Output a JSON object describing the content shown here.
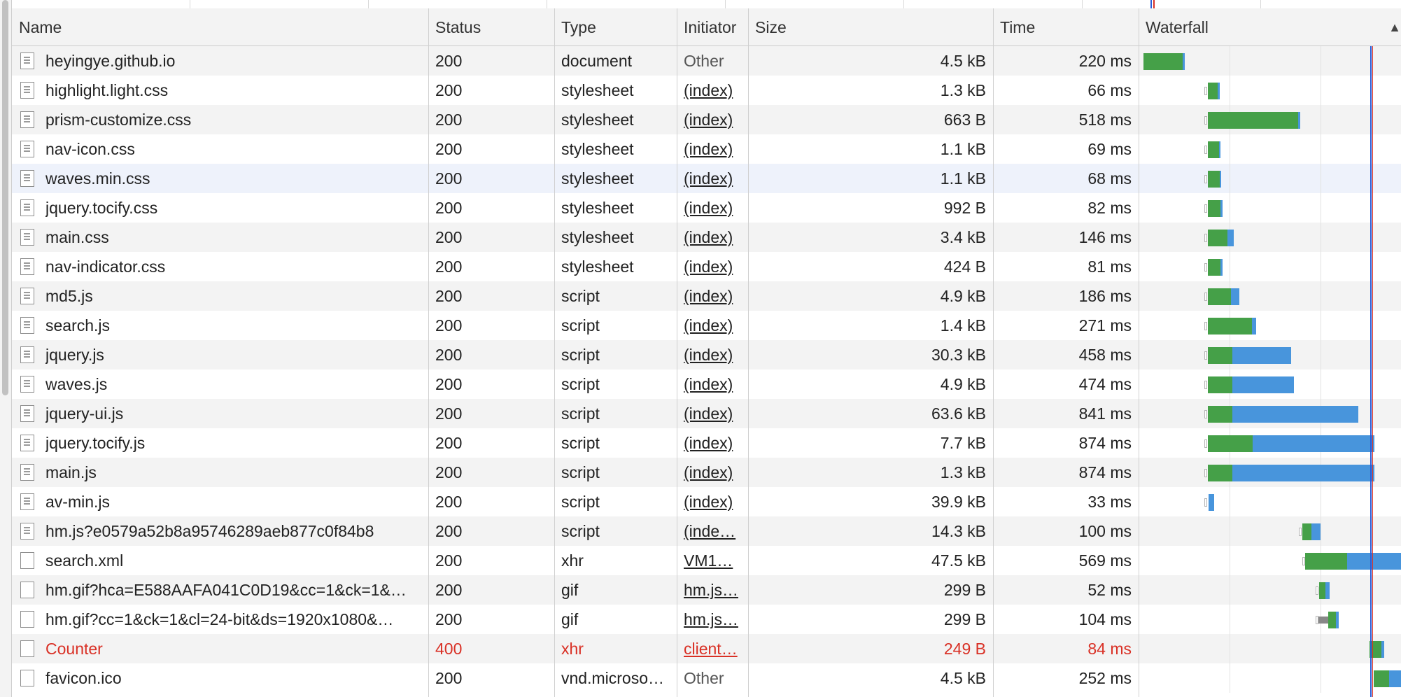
{
  "columns": {
    "name": "Name",
    "status": "Status",
    "type": "Type",
    "initiator": "Initiator",
    "size": "Size",
    "time": "Time",
    "waterfall": "Waterfall",
    "sort_indicator": "▲"
  },
  "colors": {
    "waiting_ttfb": "#45a048",
    "content_download": "#4895dc",
    "dom_content_loaded_line": "#2a5bd7",
    "load_line": "#d93025",
    "error_text": "#d93025"
  },
  "requests": [
    {
      "name": "heyingye.github.io",
      "status": "200",
      "type": "document",
      "initiator": "Other",
      "initiator_link": false,
      "size": "4.5 kB",
      "time": "220 ms",
      "icon": "document-icon",
      "error": false
    },
    {
      "name": "highlight.light.css",
      "status": "200",
      "type": "stylesheet",
      "initiator": "(index)",
      "initiator_link": true,
      "size": "1.3 kB",
      "time": "66 ms",
      "icon": "document-icon",
      "error": false
    },
    {
      "name": "prism-customize.css",
      "status": "200",
      "type": "stylesheet",
      "initiator": "(index)",
      "initiator_link": true,
      "size": "663 B",
      "time": "518 ms",
      "icon": "document-icon",
      "error": false
    },
    {
      "name": "nav-icon.css",
      "status": "200",
      "type": "stylesheet",
      "initiator": "(index)",
      "initiator_link": true,
      "size": "1.1 kB",
      "time": "69 ms",
      "icon": "document-icon",
      "error": false
    },
    {
      "name": "waves.min.css",
      "status": "200",
      "type": "stylesheet",
      "initiator": "(index)",
      "initiator_link": true,
      "size": "1.1 kB",
      "time": "68 ms",
      "icon": "document-icon",
      "error": false,
      "hover": true
    },
    {
      "name": "jquery.tocify.css",
      "status": "200",
      "type": "stylesheet",
      "initiator": "(index)",
      "initiator_link": true,
      "size": "992 B",
      "time": "82 ms",
      "icon": "document-icon",
      "error": false
    },
    {
      "name": "main.css",
      "status": "200",
      "type": "stylesheet",
      "initiator": "(index)",
      "initiator_link": true,
      "size": "3.4 kB",
      "time": "146 ms",
      "icon": "document-icon",
      "error": false
    },
    {
      "name": "nav-indicator.css",
      "status": "200",
      "type": "stylesheet",
      "initiator": "(index)",
      "initiator_link": true,
      "size": "424 B",
      "time": "81 ms",
      "icon": "document-icon",
      "error": false
    },
    {
      "name": "md5.js",
      "status": "200",
      "type": "script",
      "initiator": "(index)",
      "initiator_link": true,
      "size": "4.9 kB",
      "time": "186 ms",
      "icon": "document-icon",
      "error": false
    },
    {
      "name": "search.js",
      "status": "200",
      "type": "script",
      "initiator": "(index)",
      "initiator_link": true,
      "size": "1.4 kB",
      "time": "271 ms",
      "icon": "document-icon",
      "error": false
    },
    {
      "name": "jquery.js",
      "status": "200",
      "type": "script",
      "initiator": "(index)",
      "initiator_link": true,
      "size": "30.3 kB",
      "time": "458 ms",
      "icon": "document-icon",
      "error": false
    },
    {
      "name": "waves.js",
      "status": "200",
      "type": "script",
      "initiator": "(index)",
      "initiator_link": true,
      "size": "4.9 kB",
      "time": "474 ms",
      "icon": "document-icon",
      "error": false
    },
    {
      "name": "jquery-ui.js",
      "status": "200",
      "type": "script",
      "initiator": "(index)",
      "initiator_link": true,
      "size": "63.6 kB",
      "time": "841 ms",
      "icon": "document-icon",
      "error": false
    },
    {
      "name": "jquery.tocify.js",
      "status": "200",
      "type": "script",
      "initiator": "(index)",
      "initiator_link": true,
      "size": "7.7 kB",
      "time": "874 ms",
      "icon": "document-icon",
      "error": false
    },
    {
      "name": "main.js",
      "status": "200",
      "type": "script",
      "initiator": "(index)",
      "initiator_link": true,
      "size": "1.3 kB",
      "time": "874 ms",
      "icon": "document-icon",
      "error": false
    },
    {
      "name": "av-min.js",
      "status": "200",
      "type": "script",
      "initiator": "(index)",
      "initiator_link": true,
      "size": "39.9 kB",
      "time": "33 ms",
      "icon": "document-icon",
      "error": false
    },
    {
      "name": "hm.js?e0579a52b8a95746289aeb877c0f84b8",
      "status": "200",
      "type": "script",
      "initiator": "(inde…",
      "initiator_link": true,
      "size": "14.3 kB",
      "time": "100 ms",
      "icon": "document-icon",
      "error": false
    },
    {
      "name": "search.xml",
      "status": "200",
      "type": "xhr",
      "initiator": "VM1…",
      "initiator_link": true,
      "size": "47.5 kB",
      "time": "569 ms",
      "icon": "blank-file-icon",
      "error": false
    },
    {
      "name": "hm.gif?hca=E588AAFA041C0D19&cc=1&ck=1&…",
      "status": "200",
      "type": "gif",
      "initiator": "hm.js…",
      "initiator_link": true,
      "size": "299 B",
      "time": "52 ms",
      "icon": "blank-file-icon",
      "error": false
    },
    {
      "name": "hm.gif?cc=1&ck=1&cl=24-bit&ds=1920x1080&…",
      "status": "200",
      "type": "gif",
      "initiator": "hm.js…",
      "initiator_link": true,
      "size": "299 B",
      "time": "104 ms",
      "icon": "blank-file-icon",
      "error": false
    },
    {
      "name": "Counter",
      "status": "400",
      "type": "xhr",
      "initiator": "client…",
      "initiator_link": true,
      "size": "249 B",
      "time": "84 ms",
      "icon": "blank-file-icon",
      "error": true
    },
    {
      "name": "favicon.ico",
      "status": "200",
      "type": "vnd.microso…",
      "initiator": "Other",
      "initiator_link": false,
      "size": "4.5 kB",
      "time": "252 ms",
      "icon": "blank-file-icon",
      "error": false
    }
  ]
}
